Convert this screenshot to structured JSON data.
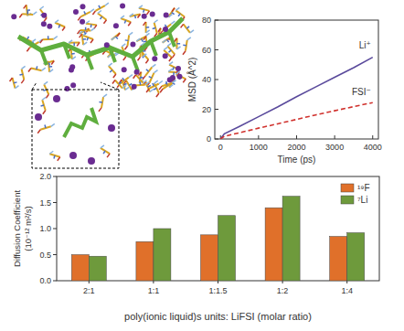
{
  "chart_data": [
    {
      "type": "line",
      "x_label": "Time (ps)",
      "y_label": "MSD (Å^2)",
      "x": [
        0,
        100,
        500,
        1000,
        1500,
        2000,
        2500,
        3000,
        3500,
        4000
      ],
      "xlim": [
        -150,
        4150
      ],
      "xticks": [
        0,
        1000,
        2000,
        3000,
        4000
      ],
      "ylim": [
        0,
        80
      ],
      "yticks": [
        0,
        20,
        40,
        60,
        80
      ],
      "series": [
        {
          "name": "Li⁺",
          "color": "#5a4a9c",
          "line_style": "solid",
          "values": [
            0,
            3.5,
            8.5,
            15,
            21.5,
            28.5,
            35,
            41.5,
            48,
            55
          ]
        },
        {
          "name": "FSI⁻",
          "color": "#d0312d",
          "line_style": "dashed",
          "values": [
            0,
            1.8,
            4.2,
            7.3,
            10.2,
            13.2,
            16.2,
            19,
            21.8,
            24.5
          ]
        }
      ]
    },
    {
      "type": "bar",
      "x_label": "poly(ionic liquid)s units: LiFSI (molar ratio)",
      "y_label": [
        "Diffusion Coefficient",
        "(10⁻¹² m²/s)"
      ],
      "categories": [
        "2:1",
        "1:1",
        "1:1.5",
        "1:2",
        "1:4"
      ],
      "ylim": [
        0,
        2.0
      ],
      "yticks": [
        {
          "value": 0,
          "label": "0.0"
        },
        {
          "value": 0.5,
          "label": "0.5"
        },
        {
          "value": 1.0,
          "label": "1.0"
        },
        {
          "value": 1.5,
          "label": "1.5"
        },
        {
          "value": 2.0,
          "label": "2.0"
        }
      ],
      "legend": "top-right",
      "series": [
        {
          "name": "¹⁹F",
          "color": "#e0702a",
          "values": [
            0.5,
            0.75,
            0.88,
            1.4,
            0.85
          ]
        },
        {
          "name": "⁷Li",
          "color": "#6e9a3c",
          "values": [
            0.47,
            1.0,
            1.25,
            1.62,
            0.92
          ]
        }
      ]
    }
  ]
}
